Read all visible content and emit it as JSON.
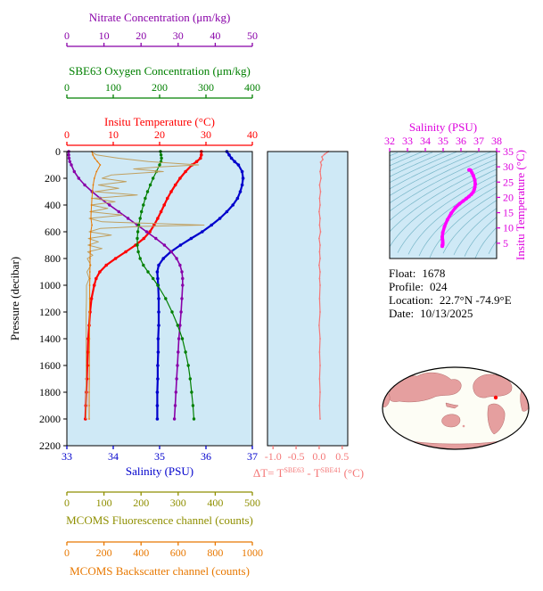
{
  "colors": {
    "plot_bg": "#cfe9f6",
    "nitrate": "#8800a8",
    "oxygen": "#008000",
    "temperature": "#ff0000",
    "pressure": "#000000",
    "salinity": "#0000cc",
    "fluorescence": "#8f8f00",
    "fluorescence_line": "#c0a060",
    "backscatter": "#e87800",
    "delta": "#f47878",
    "ts_axis": "#dd00dd",
    "ts_curve": "#ff00ff",
    "contour": "#78b6c8",
    "map_land": "#e59f9f",
    "map_ocean": "#fdfdf5",
    "map_outline": "#000000",
    "map_marker": "#ff0000"
  },
  "chart_data": [
    {
      "type": "line",
      "name": "profile-plot",
      "ylabel": "Pressure (decibar)",
      "ylim": [
        0,
        2200
      ],
      "yticks": [
        0,
        200,
        400,
        600,
        800,
        1000,
        1200,
        1400,
        1600,
        1800,
        2000,
        2200
      ],
      "axes": [
        {
          "id": "temperature",
          "label": "Insitu Temperature (°C)",
          "min": 0,
          "max": 40,
          "ticks": [
            0,
            10,
            20,
            30,
            40
          ]
        },
        {
          "id": "salinity",
          "label": "Salinity (PSU)",
          "min": 33,
          "max": 37,
          "ticks": [
            33,
            34,
            35,
            36,
            37
          ]
        },
        {
          "id": "nitrate",
          "label": "Nitrate Concentration (μm/kg)",
          "min": 0,
          "max": 50,
          "ticks": [
            0,
            10,
            20,
            30,
            40,
            50
          ]
        },
        {
          "id": "oxygen",
          "label": "SBE63 Oxygen Concentration (μm/kg)",
          "min": 0,
          "max": 400,
          "ticks": [
            0,
            100,
            200,
            300,
            400
          ]
        },
        {
          "id": "fluorescence",
          "label": "MCOMS Fluorescence channel (counts)",
          "min": 0,
          "max": 500,
          "ticks": [
            0,
            100,
            200,
            300,
            400,
            500
          ]
        },
        {
          "id": "backscatter",
          "label": "MCOMS Backscatter channel (counts)",
          "min": 0,
          "max": 1000,
          "ticks": [
            0,
            200,
            400,
            600,
            800,
            1000
          ]
        }
      ],
      "series": [
        {
          "name": "temperature",
          "axis": "temperature",
          "pressure": [
            0,
            25,
            50,
            75,
            100,
            150,
            200,
            250,
            300,
            350,
            400,
            450,
            500,
            550,
            600,
            650,
            700,
            750,
            800,
            850,
            900,
            950,
            1000,
            1100,
            1200,
            1300,
            1400,
            1500,
            1600,
            1700,
            1800,
            1900,
            2000
          ],
          "values": [
            29.0,
            29.0,
            28.8,
            28.0,
            27.0,
            25.6,
            24.4,
            23.4,
            22.5,
            21.7,
            21.0,
            20.3,
            19.6,
            18.8,
            17.9,
            16.6,
            14.8,
            12.7,
            10.5,
            8.5,
            7.1,
            6.3,
            5.9,
            5.3,
            5.0,
            4.8,
            4.6,
            4.5,
            4.4,
            4.3,
            4.2,
            4.1,
            4.0
          ]
        },
        {
          "name": "salinity",
          "axis": "salinity",
          "pressure": [
            0,
            25,
            50,
            75,
            100,
            150,
            200,
            250,
            300,
            350,
            400,
            450,
            500,
            550,
            600,
            650,
            700,
            750,
            800,
            850,
            900,
            950,
            1000,
            1100,
            1200,
            1300,
            1400,
            1500,
            1600,
            1700,
            1800,
            1900,
            2000
          ],
          "values": [
            36.45,
            36.5,
            36.55,
            36.62,
            36.7,
            36.78,
            36.8,
            36.78,
            36.74,
            36.68,
            36.58,
            36.45,
            36.3,
            36.12,
            35.92,
            35.68,
            35.45,
            35.24,
            35.08,
            34.98,
            34.95,
            34.96,
            34.97,
            34.98,
            34.98,
            34.98,
            34.97,
            34.97,
            34.96,
            34.96,
            34.95,
            34.95,
            34.95
          ]
        },
        {
          "name": "nitrate",
          "axis": "nitrate",
          "pressure": [
            0,
            25,
            50,
            75,
            100,
            150,
            200,
            250,
            300,
            350,
            400,
            450,
            500,
            550,
            600,
            650,
            700,
            750,
            800,
            850,
            900,
            950,
            1000,
            1100,
            1200,
            1300,
            1400,
            1500,
            1600,
            1700,
            1800,
            1900,
            2000
          ],
          "values": [
            0.5,
            0.5,
            0.6,
            0.8,
            1.2,
            2.0,
            3.2,
            4.8,
            6.8,
            9.0,
            11.5,
            14.0,
            16.5,
            19.0,
            21.5,
            24.0,
            26.3,
            28.2,
            29.6,
            30.5,
            31.0,
            31.2,
            31.2,
            31.0,
            30.8,
            30.5,
            30.2,
            30.0,
            29.8,
            29.6,
            29.4,
            29.2,
            29.0
          ]
        },
        {
          "name": "oxygen",
          "axis": "oxygen",
          "pressure": [
            0,
            25,
            50,
            75,
            100,
            150,
            200,
            250,
            300,
            350,
            400,
            450,
            500,
            550,
            600,
            650,
            700,
            750,
            800,
            850,
            900,
            950,
            1000,
            1100,
            1200,
            1300,
            1400,
            1500,
            1600,
            1700,
            1800,
            1900,
            2000
          ],
          "values": [
            202,
            203,
            204,
            203,
            200,
            193,
            186,
            180,
            174,
            169,
            165,
            161,
            158,
            155,
            153,
            152,
            152,
            154,
            158,
            165,
            175,
            186,
            196,
            213,
            227,
            239,
            249,
            256,
            262,
            266,
            269,
            272,
            274
          ]
        },
        {
          "name": "fluorescence",
          "axis": "fluorescence",
          "pressure": [
            0,
            25,
            50,
            75,
            100,
            115,
            130,
            150,
            175,
            200,
            225,
            250,
            275,
            300,
            325,
            350,
            375,
            400,
            425,
            450,
            475,
            500,
            525,
            550,
            560,
            575,
            600,
            625,
            650,
            675,
            700,
            725,
            750,
            775,
            800,
            850,
            900,
            950,
            1000,
            1100,
            1200,
            1400,
            1600,
            1800,
            2000
          ],
          "values": [
            65,
            80,
            140,
            220,
            355,
            250,
            180,
            260,
            120,
            95,
            160,
            85,
            140,
            75,
            190,
            70,
            130,
            65,
            110,
            62,
            150,
            60,
            95,
            370,
            200,
            90,
            60,
            120,
            58,
            85,
            57,
            95,
            56,
            70,
            55,
            65,
            54,
            60,
            53,
            53,
            52,
            52,
            52,
            52,
            52
          ]
        },
        {
          "name": "backscatter",
          "axis": "backscatter",
          "pressure": [
            0,
            25,
            50,
            75,
            100,
            150,
            200,
            250,
            300,
            350,
            400,
            450,
            500,
            550,
            600,
            650,
            700,
            750,
            800,
            850,
            900,
            950,
            1000,
            1100,
            1200,
            1300,
            1400,
            1500,
            1600,
            1700,
            1800,
            1900,
            2000
          ],
          "values": [
            135,
            140,
            150,
            165,
            180,
            160,
            148,
            142,
            138,
            135,
            133,
            131,
            130,
            135,
            129,
            127,
            126,
            126,
            125,
            125,
            124,
            124,
            123,
            123,
            122,
            122,
            122,
            121,
            121,
            121,
            120,
            120,
            120
          ]
        }
      ]
    },
    {
      "type": "line",
      "name": "delta-t-plot",
      "xlabel_parts": {
        "p1": "ΔT= T",
        "s1": "SBE63",
        "p2": " - T",
        "s2": "SBE41",
        "p3": " (°C)"
      },
      "xlim": [
        -1.12,
        0.62
      ],
      "xticks": [
        -1.0,
        -0.5,
        0.0,
        0.5
      ],
      "xtick_labels": [
        "-1.0",
        "-0.5",
        "0.0",
        "0.5"
      ],
      "ylim": [
        0,
        2200
      ],
      "pressure": [
        0,
        20,
        40,
        60,
        80,
        100,
        150,
        200,
        250,
        300,
        350,
        400,
        450,
        500,
        550,
        600,
        650,
        700,
        750,
        800,
        850,
        900,
        950,
        1000,
        1100,
        1200,
        1300,
        1400,
        1500,
        1600,
        1700,
        1800,
        1900,
        2000
      ],
      "values": [
        0.2,
        0.12,
        0.06,
        0.08,
        0.03,
        0.05,
        0.02,
        0.04,
        0.01,
        0.03,
        0.01,
        0.02,
        0.0,
        0.02,
        0.01,
        0.03,
        0.0,
        0.02,
        0.01,
        0.02,
        0.0,
        0.02,
        0.01,
        0.02,
        0.01,
        0.02,
        0.0,
        0.02,
        0.01,
        0.02,
        0.01,
        0.02,
        0.01,
        0.02
      ]
    },
    {
      "type": "line",
      "name": "ts-diagram",
      "xlabel": "Salinity (PSU)",
      "ylabel": "Insitu Temperature (°C)",
      "xlim": [
        32,
        38
      ],
      "ylim": [
        0,
        35
      ],
      "xticks": [
        32,
        33,
        34,
        35,
        36,
        37,
        38
      ],
      "yticks": [
        5,
        10,
        15,
        20,
        25,
        30,
        35
      ],
      "sigma_contours": [
        19,
        19.5,
        20,
        20.5,
        21,
        21.5,
        22,
        22.5,
        23,
        23.5,
        24,
        24.5,
        25,
        25.5,
        26,
        26.5,
        27,
        27.5,
        28,
        28.5,
        29,
        29.5,
        30,
        30.5
      ],
      "curve": [
        [
          36.45,
          29.0
        ],
        [
          36.5,
          29.0
        ],
        [
          36.55,
          28.8
        ],
        [
          36.62,
          28.0
        ],
        [
          36.7,
          27.0
        ],
        [
          36.78,
          25.6
        ],
        [
          36.8,
          24.4
        ],
        [
          36.78,
          23.4
        ],
        [
          36.74,
          22.5
        ],
        [
          36.68,
          21.7
        ],
        [
          36.58,
          21.0
        ],
        [
          36.45,
          20.3
        ],
        [
          36.3,
          19.6
        ],
        [
          36.12,
          18.8
        ],
        [
          35.92,
          17.9
        ],
        [
          35.68,
          16.6
        ],
        [
          35.45,
          14.8
        ],
        [
          35.24,
          12.7
        ],
        [
          35.08,
          10.5
        ],
        [
          34.98,
          8.5
        ],
        [
          34.95,
          7.1
        ],
        [
          34.96,
          6.3
        ],
        [
          34.97,
          5.9
        ],
        [
          34.98,
          5.3
        ],
        [
          34.98,
          5.0
        ],
        [
          34.98,
          4.8
        ],
        [
          34.97,
          4.6
        ],
        [
          34.97,
          4.5
        ],
        [
          34.96,
          4.4
        ],
        [
          34.96,
          4.3
        ],
        [
          34.95,
          4.2
        ],
        [
          34.95,
          4.1
        ],
        [
          34.95,
          4.0
        ]
      ]
    }
  ],
  "info": {
    "rows": [
      {
        "label": "Float:",
        "value": "1678"
      },
      {
        "label": "Profile:",
        "value": "024"
      },
      {
        "label": "Location:",
        "value": "22.7°N -74.9°E"
      },
      {
        "label": "Date:",
        "value": "10/13/2025"
      }
    ]
  }
}
